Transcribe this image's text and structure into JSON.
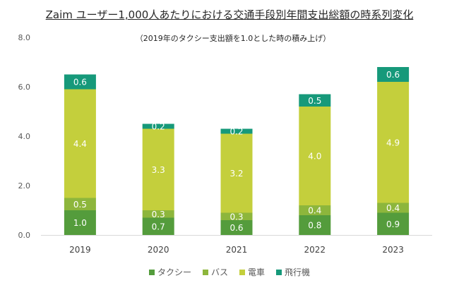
{
  "chart_data": {
    "type": "bar",
    "stacked": true,
    "title": "Zaim ユーザー1,000人あたりにおける交通手段別年間支出総額の時系列変化",
    "subtitle": "（2019年のタクシー支出額を1.0とした時の積み上げ）",
    "xlabel": "",
    "ylabel": "",
    "ylim": [
      0,
      8
    ],
    "yticks": [
      "0.0",
      "2.0",
      "4.0",
      "6.0",
      "8.0"
    ],
    "ytick_values": [
      0,
      2,
      4,
      6,
      8
    ],
    "grid": false,
    "legend_position": "bottom",
    "categories": [
      "2019",
      "2020",
      "2021",
      "2022",
      "2023"
    ],
    "series": [
      {
        "name": "タクシー",
        "color": "#549c3c",
        "values": [
          1.0,
          0.7,
          0.6,
          0.8,
          0.9
        ]
      },
      {
        "name": "バス",
        "color": "#8db63c",
        "values": [
          0.5,
          0.3,
          0.3,
          0.4,
          0.4
        ]
      },
      {
        "name": "電車",
        "color": "#c4cf3c",
        "values": [
          4.4,
          3.3,
          3.2,
          4.0,
          4.9
        ]
      },
      {
        "name": "飛行機",
        "color": "#16997a",
        "values": [
          0.6,
          0.2,
          0.2,
          0.5,
          0.6
        ]
      }
    ]
  }
}
